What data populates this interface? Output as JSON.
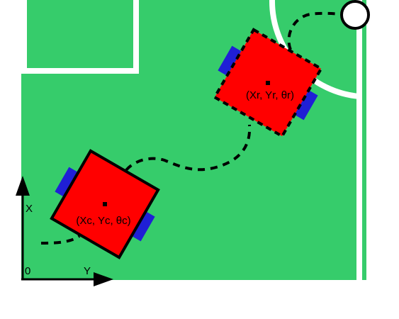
{
  "colors": {
    "field": "#36CC6B",
    "field_lines": "#FFFFFF",
    "robot_body": "#FF0000",
    "robot_wheel": "#1F1FD6",
    "path": "#000000",
    "axes": "#000000",
    "background": "#FFFFFF"
  },
  "robots": {
    "current": {
      "label": "(Xc, Yc, θc)",
      "outline": "solid"
    },
    "target": {
      "label": "(Xr, Yr, θr)",
      "outline": "dashed"
    }
  },
  "axes": {
    "origin_label": "0",
    "x_label": "X",
    "y_label": "Y"
  },
  "icons": {
    "goal_marker": "circle-icon",
    "robot_center": "square-dot-icon"
  }
}
